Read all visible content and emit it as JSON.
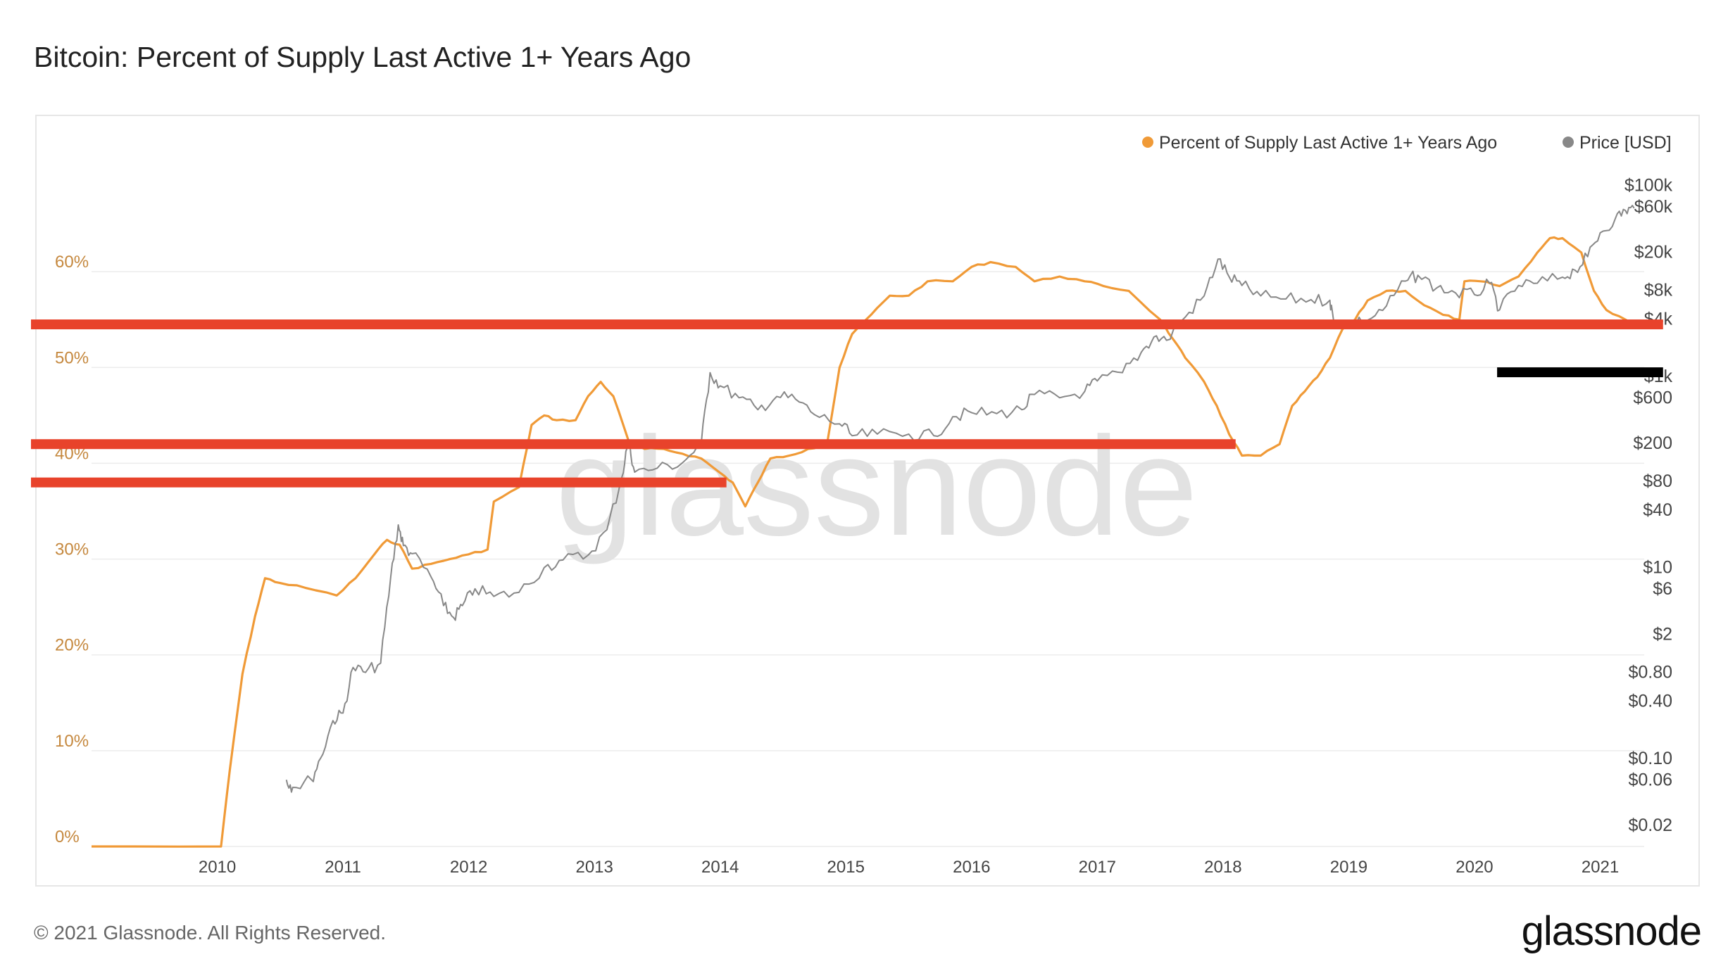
{
  "title": "Bitcoin: Percent of Supply Last Active 1+ Years Ago",
  "watermark": "glassnode",
  "footer": {
    "copyright": "© 2021 Glassnode. All Rights Reserved.",
    "logo": "glassnode"
  },
  "colors": {
    "supply": "#f09a37",
    "price": "#888888",
    "highlight": "#e8432b",
    "marker": "#000000",
    "leftAxis": "#c5883e",
    "rightAxis": "#444444",
    "grid": "#ececec"
  },
  "chart_data": {
    "type": "line",
    "title": "Bitcoin: Percent of Supply Last Active 1+ Years Ago",
    "legend": [
      {
        "name": "Percent of Supply Last Active 1+ Years Ago",
        "color": "#f09a37"
      },
      {
        "name": "Price [USD]",
        "color": "#888888"
      }
    ],
    "legend_position": "top-right",
    "x_ticks": [
      "2010",
      "2011",
      "2012",
      "2013",
      "2014",
      "2015",
      "2016",
      "2017",
      "2018",
      "2019",
      "2020",
      "2021"
    ],
    "x_range": [
      2009.0,
      2021.35
    ],
    "y_left": {
      "ticks": [
        "0%",
        "10%",
        "20%",
        "30%",
        "40%",
        "50%",
        "60%"
      ],
      "values": [
        0,
        10,
        20,
        30,
        40,
        50,
        60
      ],
      "range": [
        0,
        70
      ]
    },
    "y_right": {
      "scale": "log",
      "range": [
        0.015,
        120000
      ],
      "ticks": [
        {
          "label": "$100k",
          "value": 100000
        },
        {
          "label": "$60k",
          "value": 60000
        },
        {
          "label": "$20k",
          "value": 20000
        },
        {
          "label": "$8k",
          "value": 8000
        },
        {
          "label": "$4k",
          "value": 4000
        },
        {
          "label": "$1k",
          "value": 1000
        },
        {
          "label": "$600",
          "value": 600
        },
        {
          "label": "$200",
          "value": 200
        },
        {
          "label": "$80",
          "value": 80
        },
        {
          "label": "$40",
          "value": 40
        },
        {
          "label": "$10",
          "value": 10
        },
        {
          "label": "$6",
          "value": 6
        },
        {
          "label": "$2",
          "value": 2
        },
        {
          "label": "$0.80",
          "value": 0.8
        },
        {
          "label": "$0.40",
          "value": 0.4
        },
        {
          "label": "$0.10",
          "value": 0.1
        },
        {
          "label": "$0.06",
          "value": 0.06
        },
        {
          "label": "$0.02",
          "value": 0.02
        }
      ]
    },
    "series": [
      {
        "name": "Percent of Supply Last Active 1+ Years Ago",
        "axis": "left",
        "points": [
          [
            2009.0,
            0
          ],
          [
            2010.03,
            0
          ],
          [
            2010.1,
            8
          ],
          [
            2010.2,
            18
          ],
          [
            2010.3,
            24
          ],
          [
            2010.38,
            28
          ],
          [
            2010.5,
            27.5
          ],
          [
            2010.7,
            27
          ],
          [
            2010.95,
            26.2
          ],
          [
            2011.1,
            28
          ],
          [
            2011.25,
            30.5
          ],
          [
            2011.35,
            32
          ],
          [
            2011.45,
            31.5
          ],
          [
            2011.55,
            29
          ],
          [
            2011.7,
            29.5
          ],
          [
            2011.85,
            30
          ],
          [
            2012.0,
            30.5
          ],
          [
            2012.15,
            31
          ],
          [
            2012.2,
            36
          ],
          [
            2012.4,
            37.5
          ],
          [
            2012.5,
            44
          ],
          [
            2012.6,
            45
          ],
          [
            2012.7,
            44.5
          ],
          [
            2012.85,
            44.5
          ],
          [
            2012.95,
            47
          ],
          [
            2013.05,
            48.5
          ],
          [
            2013.15,
            47
          ],
          [
            2013.28,
            42
          ],
          [
            2013.4,
            41.5
          ],
          [
            2013.55,
            41.5
          ],
          [
            2013.7,
            41
          ],
          [
            2013.85,
            40.5
          ],
          [
            2014.0,
            39
          ],
          [
            2014.1,
            38
          ],
          [
            2014.2,
            35.5
          ],
          [
            2014.3,
            38
          ],
          [
            2014.4,
            40.5
          ],
          [
            2014.55,
            40.8
          ],
          [
            2014.7,
            41.5
          ],
          [
            2014.85,
            42
          ],
          [
            2014.95,
            50
          ],
          [
            2015.05,
            53.5
          ],
          [
            2015.2,
            55.5
          ],
          [
            2015.35,
            57.5
          ],
          [
            2015.5,
            57.5
          ],
          [
            2015.65,
            59
          ],
          [
            2015.85,
            59
          ],
          [
            2016.0,
            60.5
          ],
          [
            2016.15,
            61
          ],
          [
            2016.35,
            60.5
          ],
          [
            2016.5,
            59
          ],
          [
            2016.7,
            59.5
          ],
          [
            2016.9,
            59
          ],
          [
            2017.05,
            58.5
          ],
          [
            2017.25,
            58
          ],
          [
            2017.5,
            55
          ],
          [
            2017.6,
            53
          ],
          [
            2017.7,
            51
          ],
          [
            2017.85,
            48.5
          ],
          [
            2017.95,
            46
          ],
          [
            2018.05,
            43
          ],
          [
            2018.15,
            40.8
          ],
          [
            2018.3,
            40.8
          ],
          [
            2018.45,
            42
          ],
          [
            2018.55,
            46
          ],
          [
            2018.65,
            47.5
          ],
          [
            2018.75,
            49
          ],
          [
            2018.85,
            51
          ],
          [
            2018.95,
            54
          ],
          [
            2019.05,
            55
          ],
          [
            2019.15,
            57
          ],
          [
            2019.3,
            58
          ],
          [
            2019.45,
            58
          ],
          [
            2019.6,
            56.5
          ],
          [
            2019.75,
            55.5
          ],
          [
            2019.88,
            55
          ],
          [
            2019.92,
            59
          ],
          [
            2020.05,
            59
          ],
          [
            2020.2,
            58.5
          ],
          [
            2020.35,
            59.5
          ],
          [
            2020.5,
            62
          ],
          [
            2020.6,
            63.5
          ],
          [
            2020.7,
            63.5
          ],
          [
            2020.85,
            62
          ],
          [
            2020.95,
            58
          ],
          [
            2021.05,
            56
          ],
          [
            2021.2,
            55
          ],
          [
            2021.27,
            54.5
          ]
        ]
      },
      {
        "name": "Price [USD]",
        "axis": "right",
        "points": [
          [
            2010.55,
            0.06
          ],
          [
            2010.6,
            0.05
          ],
          [
            2010.75,
            0.06
          ],
          [
            2010.82,
            0.1
          ],
          [
            2010.92,
            0.25
          ],
          [
            2011.0,
            0.3
          ],
          [
            2011.08,
            0.9
          ],
          [
            2011.18,
            0.8
          ],
          [
            2011.3,
            1
          ],
          [
            2011.38,
            8
          ],
          [
            2011.44,
            28
          ],
          [
            2011.48,
            17
          ],
          [
            2011.55,
            14
          ],
          [
            2011.7,
            8
          ],
          [
            2011.8,
            4
          ],
          [
            2011.88,
            3
          ],
          [
            2011.95,
            4
          ],
          [
            2012.05,
            6
          ],
          [
            2012.2,
            5
          ],
          [
            2012.4,
            5.5
          ],
          [
            2012.6,
            10
          ],
          [
            2012.75,
            12
          ],
          [
            2012.95,
            13.5
          ],
          [
            2013.1,
            25
          ],
          [
            2013.22,
            90
          ],
          [
            2013.27,
            220
          ],
          [
            2013.32,
            100
          ],
          [
            2013.5,
            110
          ],
          [
            2013.7,
            125
          ],
          [
            2013.85,
            200
          ],
          [
            2013.92,
            1100
          ],
          [
            2014.0,
            800
          ],
          [
            2014.15,
            600
          ],
          [
            2014.3,
            450
          ],
          [
            2014.45,
            620
          ],
          [
            2014.6,
            580
          ],
          [
            2014.75,
            400
          ],
          [
            2014.95,
            320
          ],
          [
            2015.05,
            240
          ],
          [
            2015.25,
            250
          ],
          [
            2015.5,
            250
          ],
          [
            2015.7,
            240
          ],
          [
            2015.85,
            380
          ],
          [
            2016.0,
            420
          ],
          [
            2016.2,
            410
          ],
          [
            2016.4,
            450
          ],
          [
            2016.5,
            650
          ],
          [
            2016.7,
            600
          ],
          [
            2016.9,
            700
          ],
          [
            2017.0,
            900
          ],
          [
            2017.2,
            1100
          ],
          [
            2017.35,
            1800
          ],
          [
            2017.45,
            2600
          ],
          [
            2017.55,
            2400
          ],
          [
            2017.7,
            4200
          ],
          [
            2017.85,
            7000
          ],
          [
            2017.96,
            17000
          ],
          [
            2018.05,
            11000
          ],
          [
            2018.15,
            9000
          ],
          [
            2018.3,
            7000
          ],
          [
            2018.5,
            6500
          ],
          [
            2018.7,
            6400
          ],
          [
            2018.85,
            6300
          ],
          [
            2018.88,
            3800
          ],
          [
            2018.98,
            3600
          ],
          [
            2019.15,
            3900
          ],
          [
            2019.3,
            5500
          ],
          [
            2019.45,
            10000
          ],
          [
            2019.55,
            11500
          ],
          [
            2019.7,
            8500
          ],
          [
            2019.85,
            7500
          ],
          [
            2020.0,
            7200
          ],
          [
            2020.12,
            9500
          ],
          [
            2020.2,
            5000
          ],
          [
            2020.35,
            9000
          ],
          [
            2020.5,
            9500
          ],
          [
            2020.7,
            11000
          ],
          [
            2020.8,
            13000
          ],
          [
            2020.9,
            18000
          ],
          [
            2021.0,
            32000
          ],
          [
            2021.12,
            45000
          ],
          [
            2021.2,
            55000
          ],
          [
            2021.27,
            58000
          ]
        ]
      }
    ],
    "annotations": [
      {
        "type": "horizontal-band",
        "color": "red",
        "x_from": 2009.0,
        "x_to": 2021.5,
        "y_percent": 54.5
      },
      {
        "type": "horizontal-band",
        "color": "red",
        "x_from": 2009.0,
        "x_to": 2018.1,
        "y_percent": 42
      },
      {
        "type": "horizontal-band",
        "color": "red",
        "x_from": 2009.0,
        "x_to": 2014.05,
        "y_percent": 38
      },
      {
        "type": "horizontal-band",
        "color": "black",
        "x_from": 2020.18,
        "x_to": 2021.5,
        "y_percent": 49.5
      }
    ]
  }
}
